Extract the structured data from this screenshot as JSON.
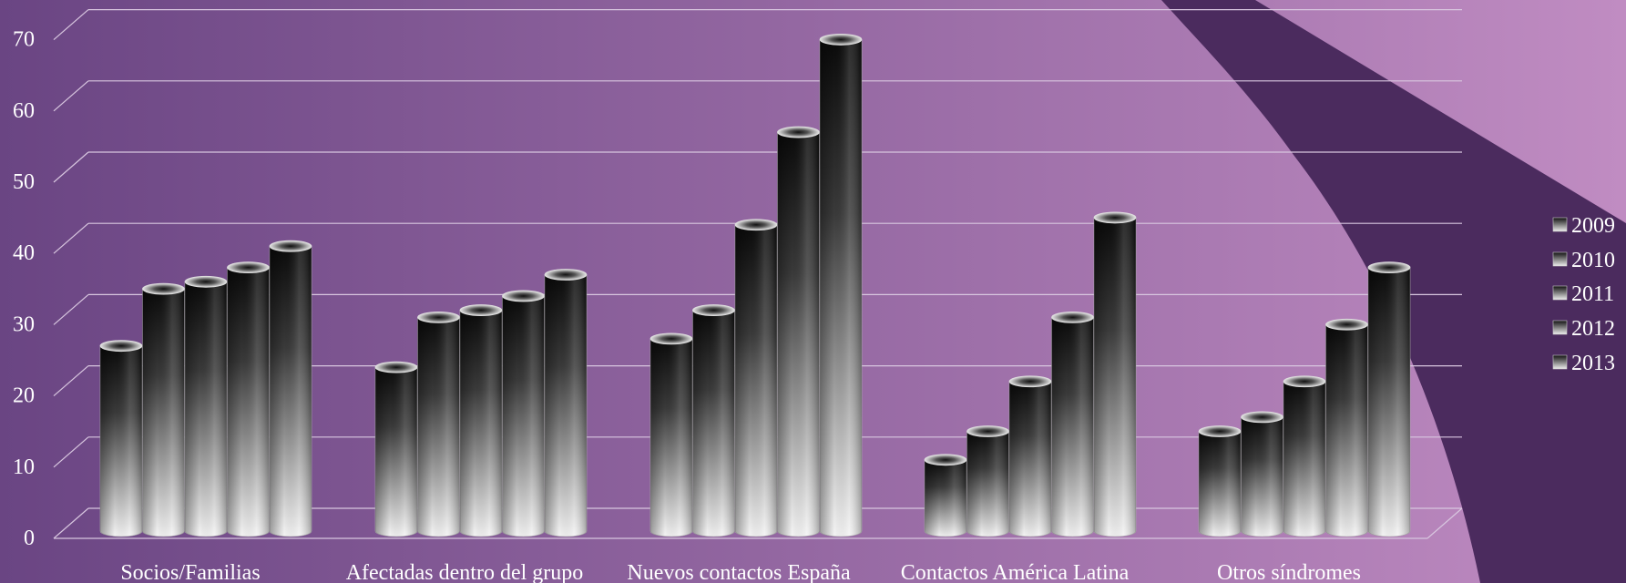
{
  "chart_data": {
    "type": "bar",
    "style": "3d-cylinder",
    "categories": [
      "Socios/Familias",
      "Afectadas dentro del grupo",
      "Nuevos contactos España",
      "Contactos América Latina",
      "Otros síndromes"
    ],
    "series": [
      {
        "name": "2009",
        "values": [
          26,
          23,
          27,
          10,
          14
        ]
      },
      {
        "name": "2010",
        "values": [
          34,
          30,
          31,
          14,
          16
        ]
      },
      {
        "name": "2011",
        "values": [
          35,
          31,
          43,
          21,
          21
        ]
      },
      {
        "name": "2012",
        "values": [
          37,
          33,
          56,
          30,
          29
        ]
      },
      {
        "name": "2013",
        "values": [
          40,
          36,
          69,
          44,
          37
        ]
      }
    ],
    "yticks": [
      0,
      10,
      20,
      30,
      40,
      50,
      60,
      70
    ],
    "ylim": [
      0,
      73
    ],
    "grid": true,
    "legend_position": "right",
    "colors": {
      "background_left": "#6a4583",
      "background_right": "#c08cc2",
      "swoosh": "#4b2b5e",
      "bar_top": "#0a0a0a",
      "bar_bottom": "#f4f4f4",
      "text": "#ffffff",
      "grid": "#d8c6df"
    }
  }
}
